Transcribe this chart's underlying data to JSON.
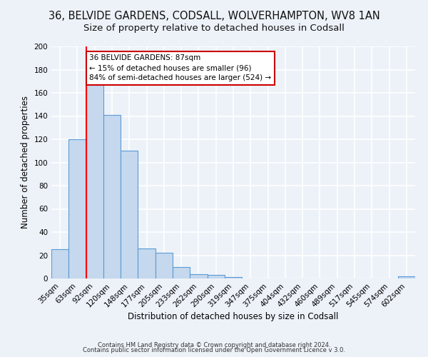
{
  "title": "36, BELVIDE GARDENS, CODSALL, WOLVERHAMPTON, WV8 1AN",
  "subtitle": "Size of property relative to detached houses in Codsall",
  "xlabel": "Distribution of detached houses by size in Codsall",
  "ylabel": "Number of detached properties",
  "bin_labels": [
    "35sqm",
    "63sqm",
    "92sqm",
    "120sqm",
    "148sqm",
    "177sqm",
    "205sqm",
    "233sqm",
    "262sqm",
    "290sqm",
    "319sqm",
    "347sqm",
    "375sqm",
    "404sqm",
    "432sqm",
    "460sqm",
    "489sqm",
    "517sqm",
    "545sqm",
    "574sqm",
    "602sqm"
  ],
  "bar_heights": [
    25,
    120,
    168,
    141,
    110,
    26,
    22,
    10,
    4,
    3,
    1,
    0,
    0,
    0,
    0,
    0,
    0,
    0,
    0,
    0,
    2
  ],
  "bar_color": "#c5d8ed",
  "bar_edge_color": "#5b9bd5",
  "red_line_bin": 2,
  "ylim": [
    0,
    200
  ],
  "yticks": [
    0,
    20,
    40,
    60,
    80,
    100,
    120,
    140,
    160,
    180,
    200
  ],
  "annotation_title": "36 BELVIDE GARDENS: 87sqm",
  "annotation_line1": "← 15% of detached houses are smaller (96)",
  "annotation_line2": "84% of semi-detached houses are larger (524) →",
  "annotation_box_color": "#ffffff",
  "annotation_box_edge": "#cc0000",
  "footer1": "Contains HM Land Registry data © Crown copyright and database right 2024.",
  "footer2": "Contains public sector information licensed under the Open Government Licence v 3.0.",
  "bg_color": "#edf2f9",
  "plot_bg_color": "#edf2f9",
  "grid_color": "#ffffff",
  "title_fontsize": 10.5,
  "subtitle_fontsize": 9.5,
  "axis_label_fontsize": 8.5,
  "tick_fontsize": 7.5,
  "footer_fontsize": 6.0
}
